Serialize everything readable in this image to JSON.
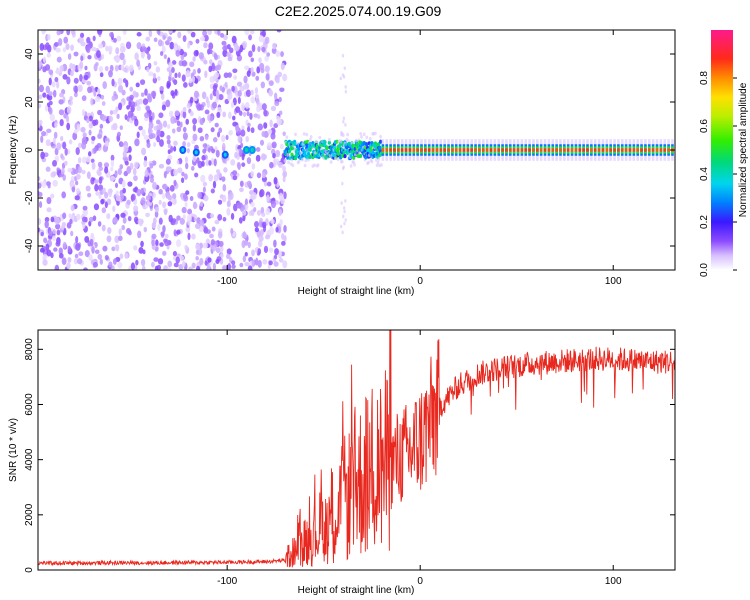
{
  "title": "C2E2.2025.074.00.19.G09",
  "colors": {
    "snr_line": "#e8281e",
    "spectrogram_background": "#ffffff",
    "colormap": [
      "#f4eaff",
      "#d8bfff",
      "#b48cff",
      "#8c4cff",
      "#6a1fff",
      "#2a1cff",
      "#0044ff",
      "#0099ff",
      "#00e5e5",
      "#00d96a",
      "#22ee00",
      "#99ee00",
      "#ffee00",
      "#ffaa00",
      "#ff5a00",
      "#ff1a2a",
      "#ff1a8c"
    ]
  },
  "chart_data": [
    {
      "type": "heatmap",
      "xlabel": "Height of straight line (km)",
      "ylabel": "Frequency (Hz)",
      "xlim": [
        -198,
        132
      ],
      "ylim": [
        -50,
        50
      ],
      "xticks": [
        -100,
        0,
        100
      ],
      "xtick_labels": [
        "-100",
        "0",
        "100"
      ],
      "yticks": [
        -40,
        -20,
        0,
        20,
        40
      ],
      "ytick_labels": [
        "-40",
        "-20",
        "0",
        "20",
        "40"
      ],
      "colorbar": {
        "label": "Normalized spectral amplitude",
        "range": [
          0,
          1
        ],
        "ticks": [
          0.0,
          0.2,
          0.4,
          0.6,
          0.8
        ],
        "tick_labels": [
          "0.0",
          "0.2",
          "0.4",
          "0.6",
          "0.8"
        ]
      },
      "regions": [
        {
          "x_range": [
            -198,
            -70
          ],
          "frequency_range": [
            -50,
            50
          ],
          "amplitude": "noise, 0.0-0.1"
        },
        {
          "x_range": [
            -70,
            -20
          ],
          "frequency_range": [
            -4,
            4
          ],
          "amplitude": "0.2-0.5, weak carrier"
        },
        {
          "x_range": [
            -20,
            132
          ],
          "frequency": 0,
          "amplitude": "0.8-0.9, strong carrier"
        }
      ],
      "isolated_features": [
        {
          "x": -123,
          "frequency": 0,
          "amplitude": 0.25
        },
        {
          "x": -116,
          "frequency": -1,
          "amplitude": 0.25
        },
        {
          "x": -101,
          "frequency": -2,
          "amplitude": 0.25
        },
        {
          "x": -90,
          "frequency": 0,
          "amplitude": 0.3
        },
        {
          "x": -87,
          "frequency": 0,
          "amplitude": 0.3
        }
      ]
    },
    {
      "type": "line",
      "xlabel": "Height of straight line (km)",
      "ylabel": "SNR (10 * v/v)",
      "xlim": [
        -198,
        132
      ],
      "ylim": [
        0,
        8700
      ],
      "xticks": [
        -100,
        0,
        100
      ],
      "xtick_labels": [
        "-100",
        "0",
        "100"
      ],
      "yticks": [
        0,
        2000,
        4000,
        6000,
        8000
      ],
      "ytick_labels": [
        "0",
        "2000",
        "4000",
        "6000",
        "8000"
      ],
      "series": [
        {
          "x": [
            -198,
            -180,
            -160,
            -140,
            -120,
            -100,
            -80,
            -70,
            -65,
            -60,
            -55,
            -50,
            -45,
            -40,
            -35,
            -30,
            -25,
            -20,
            -15,
            -10,
            -5,
            0,
            5,
            10,
            15,
            20,
            25,
            30,
            40,
            50,
            60,
            70,
            80,
            90,
            100,
            110,
            120,
            132
          ],
          "y": [
            250,
            250,
            260,
            260,
            270,
            280,
            300,
            350,
            700,
            1000,
            1300,
            1700,
            2000,
            2500,
            2900,
            3300,
            3600,
            3800,
            3900,
            4100,
            4300,
            4700,
            5300,
            5900,
            6300,
            6700,
            6900,
            7100,
            7300,
            7400,
            7500,
            7550,
            7600,
            7650,
            7650,
            7600,
            7550,
            7550
          ]
        }
      ]
    }
  ]
}
